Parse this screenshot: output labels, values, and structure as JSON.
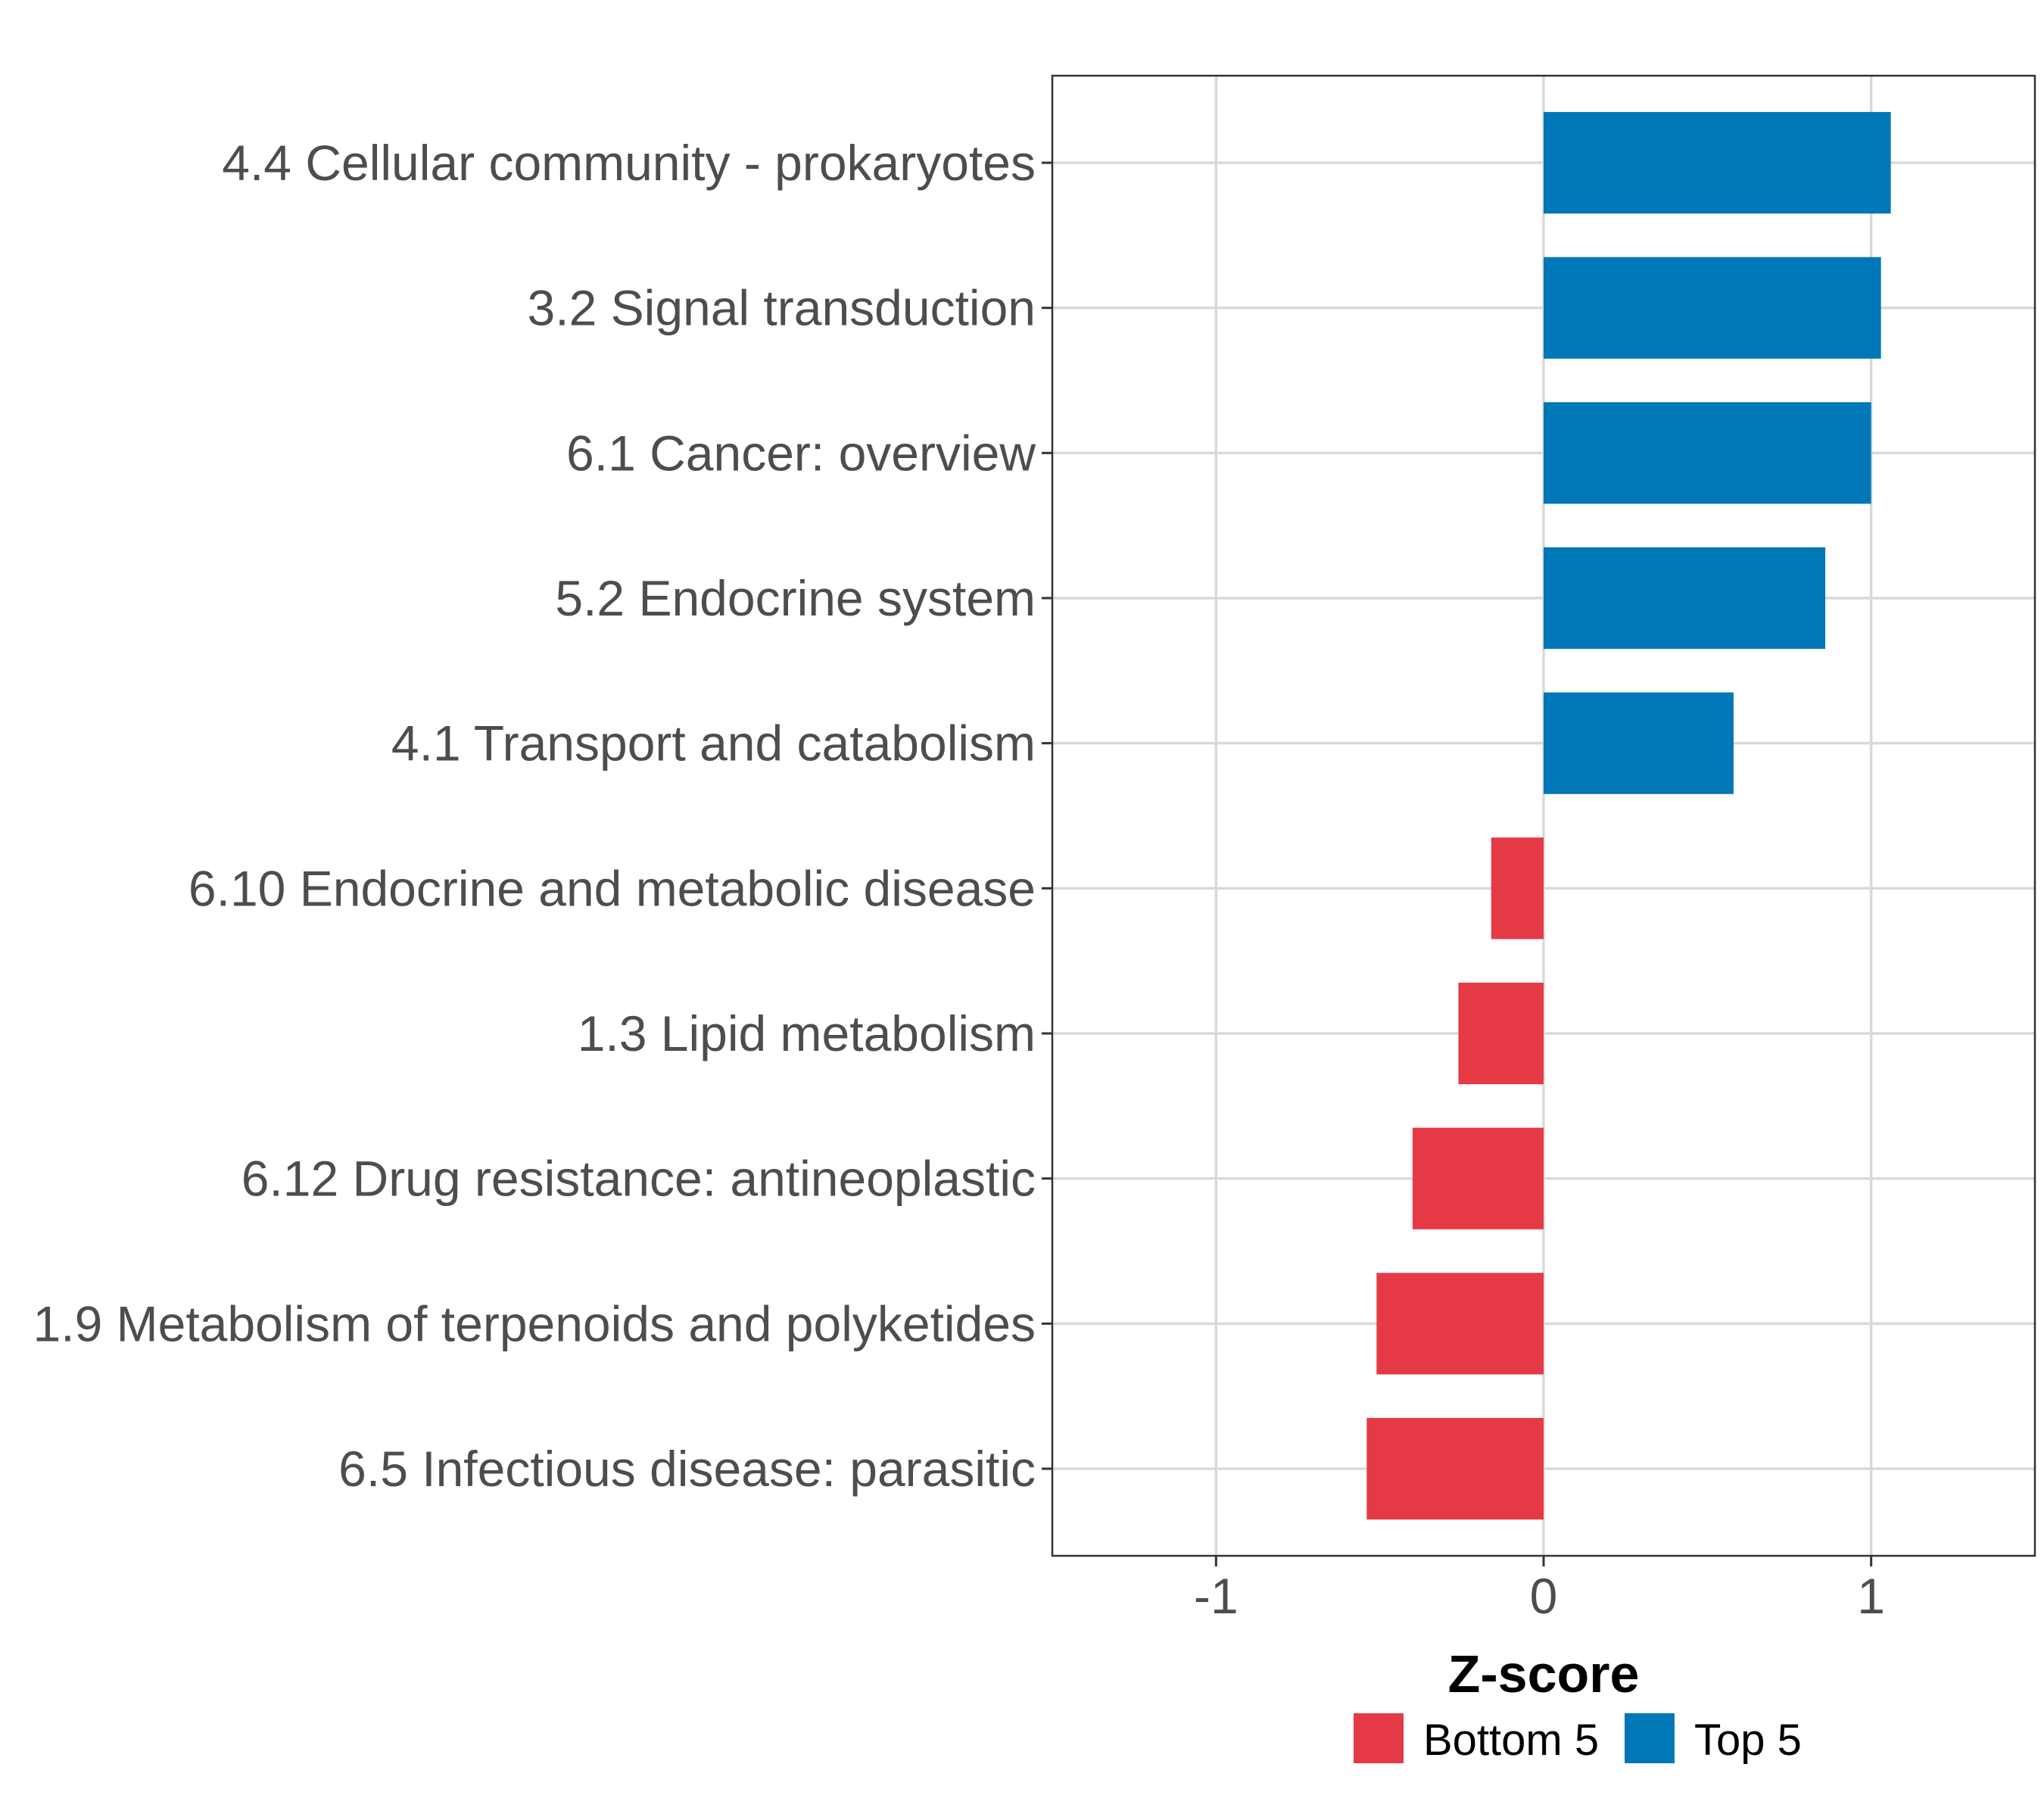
{
  "chart_data": {
    "type": "bar",
    "orientation": "horizontal",
    "title": "",
    "xlabel": "Z-score",
    "ylabel": "",
    "xlim": [
      -1.5,
      1.5
    ],
    "xticks": [
      -1,
      0,
      1
    ],
    "xtick_labels": [
      "-1",
      "0",
      "1"
    ],
    "grid": true,
    "legend_position": "bottom",
    "categories": [
      "4.4 Cellular community - prokaryotes",
      "3.2 Signal transduction",
      "6.1 Cancer: overview",
      "5.2 Endocrine system",
      "4.1 Transport and catabolism",
      "6.10 Endocrine and metabolic disease",
      "1.3 Lipid metabolism",
      "6.12 Drug resistance: antineoplastic",
      "1.9 Metabolism of terpenoids and polyketides",
      "6.5 Infectious disease: parasitic"
    ],
    "values": [
      1.06,
      1.03,
      1.0,
      0.86,
      0.58,
      -0.16,
      -0.26,
      -0.4,
      -0.51,
      -0.54
    ],
    "groups": [
      "Top 5",
      "Top 5",
      "Top 5",
      "Top 5",
      "Top 5",
      "Bottom 5",
      "Bottom 5",
      "Bottom 5",
      "Bottom 5",
      "Bottom 5"
    ],
    "legend": [
      {
        "name": "Bottom 5",
        "color": "#e63946"
      },
      {
        "name": "Top 5",
        "color": "#0077b6"
      }
    ]
  }
}
